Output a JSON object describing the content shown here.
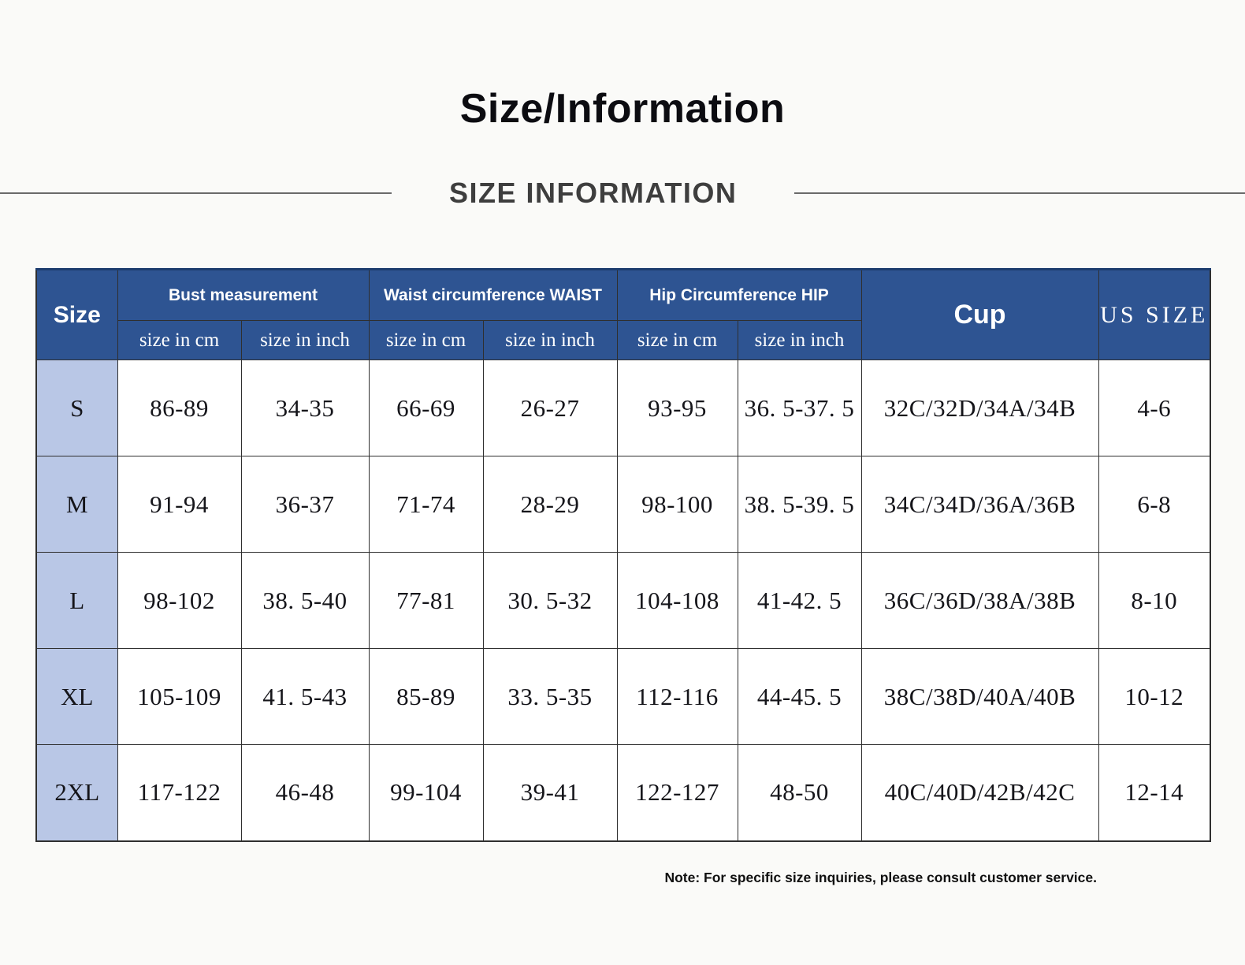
{
  "page": {
    "title": "Size/Information",
    "subtitle": "SIZE INFORMATION",
    "note": "Note: For specific size inquiries, please consult customer service."
  },
  "colors": {
    "page_background": "#fafaf8",
    "header_bg": "#2e5492",
    "header_text": "#ffffff",
    "size_column_bg": "#b9c7e6",
    "table_border": "#2f2f2f",
    "table_top_border": "#1d3c6e",
    "body_text": "#15151a",
    "subtitle_text": "#3e3e3e",
    "rule_line": "#6a6a6a"
  },
  "table": {
    "corner_label": "Size",
    "groups": [
      {
        "label": "Bust measurement"
      },
      {
        "label": "Waist circumference WAIST"
      },
      {
        "label": "Hip Circumference HIP"
      }
    ],
    "subheaders": [
      "size in cm",
      "size in inch",
      "size in cm",
      "size in inch",
      "size in cm",
      "size in inch"
    ],
    "cup_label": "Cup",
    "us_size_label": "US SIZE",
    "column_keys": [
      "bust-cm",
      "bust-inch",
      "waist-cm",
      "waist-inch",
      "hip-cm",
      "hip-inch",
      "cup",
      "us-size"
    ],
    "rows": [
      {
        "size": "S",
        "values": [
          "86-89",
          "34-35",
          "66-69",
          "26-27",
          "93-95",
          "36. 5-37. 5",
          "32C/32D/34A/34B",
          "4-6"
        ]
      },
      {
        "size": "M",
        "values": [
          "91-94",
          "36-37",
          "71-74",
          "28-29",
          "98-100",
          "38. 5-39. 5",
          "34C/34D/36A/36B",
          "6-8"
        ]
      },
      {
        "size": "L",
        "values": [
          "98-102",
          "38. 5-40",
          "77-81",
          "30. 5-32",
          "104-108",
          "41-42. 5",
          "36C/36D/38A/38B",
          "8-10"
        ]
      },
      {
        "size": "XL",
        "values": [
          "105-109",
          "41. 5-43",
          "85-89",
          "33. 5-35",
          "112-116",
          "44-45. 5",
          "38C/38D/40A/40B",
          "10-12"
        ]
      },
      {
        "size": "2XL",
        "values": [
          "117-122",
          "46-48",
          "99-104",
          "39-41",
          "122-127",
          "48-50",
          "40C/40D/42B/42C",
          "12-14"
        ]
      }
    ]
  }
}
